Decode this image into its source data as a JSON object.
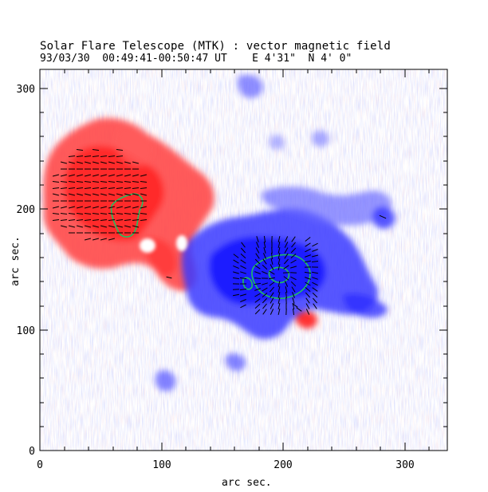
{
  "figure": {
    "title": "Solar Flare Telescope (MTK) : vector magnetic field",
    "subtitle": "93/03/30  00:49:41-00:50:47 UT    E 4'31\"  N 4' 0\"",
    "xlabel": "arc sec.",
    "ylabel": "arc sec."
  },
  "axes": {
    "x_ticks": [
      "0",
      "100",
      "200",
      "300"
    ],
    "y_ticks": [
      "0",
      "100",
      "200",
      "300"
    ],
    "xlim": [
      0,
      335
    ],
    "ylim": [
      0,
      315
    ]
  },
  "colors": {
    "positive_field": "#ff3030",
    "negative_field": "#2a2aff",
    "neutral_line": "#20c060",
    "vectors": "#000000"
  }
}
